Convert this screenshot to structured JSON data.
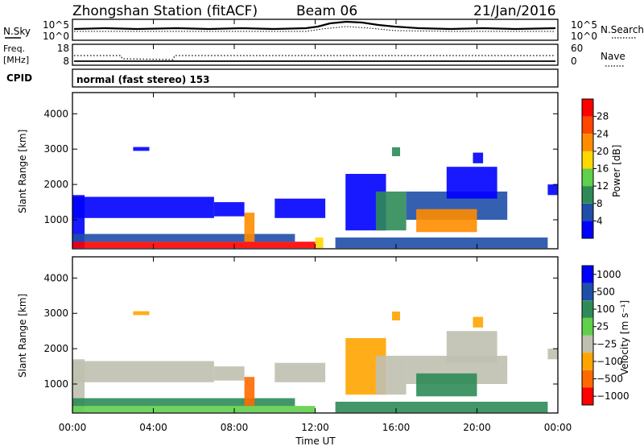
{
  "header": {
    "station": "Zhongshan Station (fitACF)",
    "beam": "Beam 06",
    "date": "21/Jan/2016"
  },
  "noise_panel": {
    "left_label": "N.Sky",
    "right_label": "N.Search",
    "ticks_left": [
      "10^5",
      "10^0"
    ],
    "ticks_right": [
      "10^5",
      "10^0"
    ]
  },
  "freq_panel": {
    "left_label_1": "Freq.",
    "left_label_2": "[MHz]",
    "right_label": "Nave",
    "ticks_left": [
      "18",
      "8"
    ],
    "ticks_right": [
      "60",
      "0"
    ]
  },
  "cpid": {
    "label": "CPID",
    "text": "normal (fast stereo) 153"
  },
  "x_axis": {
    "label": "Time UT",
    "ticks": [
      "00:00",
      "04:00",
      "08:00",
      "12:00",
      "16:00",
      "20:00",
      "00:00"
    ]
  },
  "colors": {
    "power": [
      "#0000ff",
      "#1f4fa8",
      "#2e8b57",
      "#5fd04a",
      "#ffd700",
      "#ff8c00",
      "#ff4500",
      "#ff0000"
    ],
    "velocity": [
      "#0000ff",
      "#1f4fa8",
      "#2e8b57",
      "#5fd04a",
      "#c0c0b0",
      "#ffa500",
      "#ff6a00",
      "#ff0000"
    ]
  },
  "chart_data": [
    {
      "type": "heatmap",
      "title": "Power",
      "xlabel": "Time UT",
      "ylabel": "Slant Range [km]",
      "xlim": [
        0,
        24
      ],
      "ylim": [
        180,
        4600
      ],
      "yticks": [
        1000,
        2000,
        3000,
        4000
      ],
      "colorbar": {
        "label": "Power [dB]",
        "ticks": [
          "4",
          "8",
          "12",
          "16",
          "20",
          "24",
          "28"
        ],
        "range": [
          0,
          32
        ]
      },
      "regions": [
        {
          "x0": 0.0,
          "x1": 0.6,
          "y0": 200,
          "y1": 1700,
          "level": 0
        },
        {
          "x0": 0.0,
          "x1": 12.0,
          "y0": 200,
          "y1": 380,
          "level": 7
        },
        {
          "x0": 0.0,
          "x1": 11.0,
          "y0": 380,
          "y1": 600,
          "level": 1
        },
        {
          "x0": 0.0,
          "x1": 7.0,
          "y0": 1050,
          "y1": 1650,
          "level": 0
        },
        {
          "x0": 7.0,
          "x1": 8.5,
          "y0": 1100,
          "y1": 1500,
          "level": 0
        },
        {
          "x0": 10.0,
          "x1": 12.5,
          "y0": 1050,
          "y1": 1600,
          "level": 0
        },
        {
          "x0": 8.5,
          "x1": 9.0,
          "y0": 380,
          "y1": 1200,
          "level": 5
        },
        {
          "x0": 12.0,
          "x1": 12.4,
          "y0": 200,
          "y1": 500,
          "level": 4
        },
        {
          "x0": 13.0,
          "x1": 23.5,
          "y0": 200,
          "y1": 500,
          "level": 1
        },
        {
          "x0": 13.5,
          "x1": 15.5,
          "y0": 700,
          "y1": 2300,
          "level": 0
        },
        {
          "x0": 15.0,
          "x1": 16.5,
          "y0": 700,
          "y1": 1800,
          "level": 2
        },
        {
          "x0": 16.5,
          "x1": 21.5,
          "y0": 1000,
          "y1": 1800,
          "level": 1
        },
        {
          "x0": 17.0,
          "x1": 20.0,
          "y0": 650,
          "y1": 1300,
          "level": 5
        },
        {
          "x0": 18.5,
          "x1": 21.0,
          "y0": 1600,
          "y1": 2500,
          "level": 0
        },
        {
          "x0": 19.8,
          "x1": 20.3,
          "y0": 2600,
          "y1": 2900,
          "level": 0
        },
        {
          "x0": 23.5,
          "x1": 24.0,
          "y0": 1700,
          "y1": 2000,
          "level": 0
        },
        {
          "x0": 3.0,
          "x1": 3.8,
          "y0": 2950,
          "y1": 3060,
          "level": 0
        },
        {
          "x0": 15.8,
          "x1": 16.2,
          "y0": 2800,
          "y1": 3050,
          "level": 2
        }
      ]
    },
    {
      "type": "heatmap",
      "title": "Velocity",
      "xlabel": "Time UT",
      "ylabel": "Slant Range [km]",
      "xlim": [
        0,
        24
      ],
      "ylim": [
        180,
        4600
      ],
      "yticks": [
        1000,
        2000,
        3000,
        4000
      ],
      "colorbar": {
        "label": "Velocity [m s⁻¹]",
        "ticks": [
          "1000",
          "500",
          "100",
          "25",
          "−25",
          "−100",
          "−500",
          "−1000"
        ]
      },
      "regions": [
        {
          "x0": 0.0,
          "x1": 0.6,
          "y0": 200,
          "y1": 1700,
          "level": 4
        },
        {
          "x0": 0.0,
          "x1": 12.0,
          "y0": 200,
          "y1": 380,
          "level": 3
        },
        {
          "x0": 0.0,
          "x1": 11.0,
          "y0": 380,
          "y1": 600,
          "level": 2
        },
        {
          "x0": 0.0,
          "x1": 7.0,
          "y0": 1050,
          "y1": 1650,
          "level": 4
        },
        {
          "x0": 7.0,
          "x1": 8.5,
          "y0": 1100,
          "y1": 1500,
          "level": 4
        },
        {
          "x0": 10.0,
          "x1": 12.5,
          "y0": 1050,
          "y1": 1600,
          "level": 4
        },
        {
          "x0": 8.5,
          "x1": 9.0,
          "y0": 380,
          "y1": 1200,
          "level": 6
        },
        {
          "x0": 13.0,
          "x1": 23.5,
          "y0": 200,
          "y1": 500,
          "level": 2
        },
        {
          "x0": 13.5,
          "x1": 15.5,
          "y0": 700,
          "y1": 2300,
          "level": 5
        },
        {
          "x0": 15.0,
          "x1": 16.5,
          "y0": 700,
          "y1": 1800,
          "level": 4
        },
        {
          "x0": 16.5,
          "x1": 21.5,
          "y0": 1000,
          "y1": 1800,
          "level": 4
        },
        {
          "x0": 17.0,
          "x1": 20.0,
          "y0": 650,
          "y1": 1300,
          "level": 2
        },
        {
          "x0": 18.5,
          "x1": 21.0,
          "y0": 1600,
          "y1": 2500,
          "level": 4
        },
        {
          "x0": 19.8,
          "x1": 20.3,
          "y0": 2600,
          "y1": 2900,
          "level": 5
        },
        {
          "x0": 23.5,
          "x1": 24.0,
          "y0": 1700,
          "y1": 2000,
          "level": 4
        },
        {
          "x0": 3.0,
          "x1": 3.8,
          "y0": 2950,
          "y1": 3060,
          "level": 5
        },
        {
          "x0": 15.8,
          "x1": 16.2,
          "y0": 2800,
          "y1": 3050,
          "level": 5
        }
      ]
    }
  ]
}
